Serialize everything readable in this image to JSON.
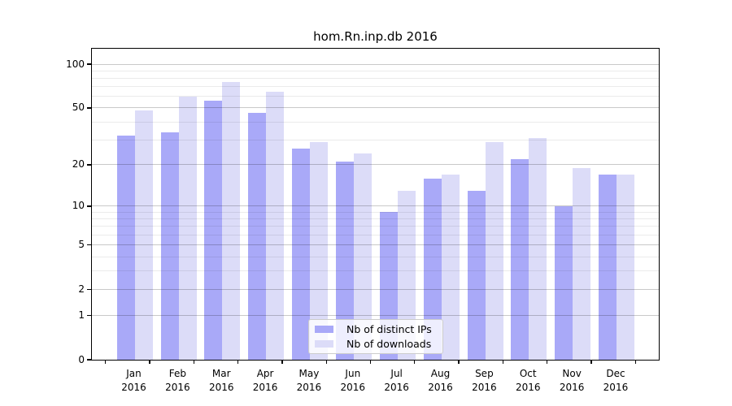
{
  "chart_data": {
    "type": "bar",
    "title": "hom.Rn.inp.db 2016",
    "categories": [
      "Jan",
      "Feb",
      "Mar",
      "Apr",
      "May",
      "Jun",
      "Jul",
      "Aug",
      "Sep",
      "Oct",
      "Nov",
      "Dec"
    ],
    "year": "2016",
    "series": [
      {
        "name": "Nb of distinct IPs",
        "color": "#a9a9f8",
        "values": [
          32,
          34,
          56,
          46,
          26,
          21,
          9,
          16,
          13,
          22,
          10,
          17
        ]
      },
      {
        "name": "Nb of downloads",
        "color": "#dcdcf8",
        "values": [
          48,
          60,
          75,
          65,
          29,
          24,
          13,
          17,
          29,
          31,
          19,
          17
        ]
      }
    ],
    "yscale": "log1p",
    "ylim": [
      0,
      124
    ],
    "y_major_ticks": [
      0,
      1,
      2,
      5,
      10,
      20,
      50,
      100
    ],
    "y_minor_gridlines": [
      3,
      4,
      6,
      7,
      8,
      9,
      30,
      40,
      60,
      70,
      80,
      90
    ],
    "grid": true,
    "legend_position": "lower center",
    "axis_color": "#000000",
    "major_grid_color": "#c9c9c9",
    "minor_grid_color": "#ebebeb"
  }
}
